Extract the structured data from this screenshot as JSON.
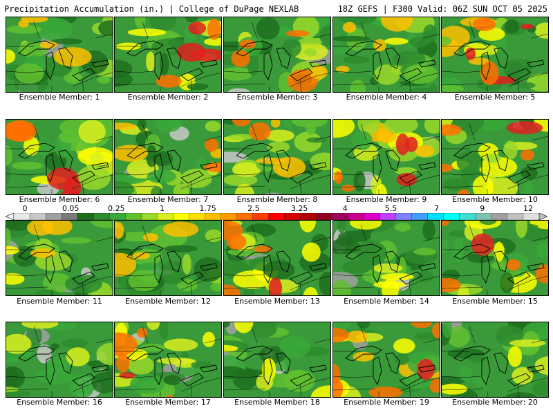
{
  "header": {
    "title_left": "Precipitation Accumulation (in.) | College of DuPage NEXLAB",
    "title_right": "18Z GEFS | F300 Valid: 06Z SUN OCT 05 2025"
  },
  "legend": {
    "tick_labels": [
      "0",
      "0.05",
      "0.25",
      "1",
      "1.75",
      "2.5",
      "3.25",
      "4",
      "5.5",
      "7",
      "9",
      "12"
    ],
    "colors": [
      "#e8e8e8",
      "#c8c8c8",
      "#a0a0a0",
      "#7a7a7a",
      "#1e6e1e",
      "#2e8b2e",
      "#3aa83a",
      "#60c030",
      "#9ad82a",
      "#d8ee20",
      "#ffff00",
      "#ffe000",
      "#ffc000",
      "#ff9a00",
      "#ff7000",
      "#ff4000",
      "#ff0000",
      "#d80000",
      "#b00000",
      "#900020",
      "#a00060",
      "#c8008c",
      "#e000c8",
      "#c040ff",
      "#8080ff",
      "#40a0ff",
      "#00e0ff",
      "#00ffff",
      "#40e0d0",
      "#80c0b0",
      "#a0a0a0",
      "#c0c0c0",
      "#e0e0e0"
    ]
  },
  "members": [
    {
      "label": "Ensemble Member: 1"
    },
    {
      "label": "Ensemble Member: 2"
    },
    {
      "label": "Ensemble Member: 3"
    },
    {
      "label": "Ensemble Member: 4"
    },
    {
      "label": "Ensemble Member: 5"
    },
    {
      "label": "Ensemble Member: 6"
    },
    {
      "label": "Ensemble Member: 7"
    },
    {
      "label": "Ensemble Member: 8"
    },
    {
      "label": "Ensemble Member: 9"
    },
    {
      "label": "Ensemble Member: 10"
    },
    {
      "label": "Ensemble Member: 11"
    },
    {
      "label": "Ensemble Member: 12"
    },
    {
      "label": "Ensemble Member: 13"
    },
    {
      "label": "Ensemble Member: 14"
    },
    {
      "label": "Ensemble Member: 15"
    },
    {
      "label": "Ensemble Member: 16"
    },
    {
      "label": "Ensemble Member: 17"
    },
    {
      "label": "Ensemble Member: 18"
    },
    {
      "label": "Ensemble Member: 19"
    },
    {
      "label": "Ensemble Member: 20"
    }
  ]
}
